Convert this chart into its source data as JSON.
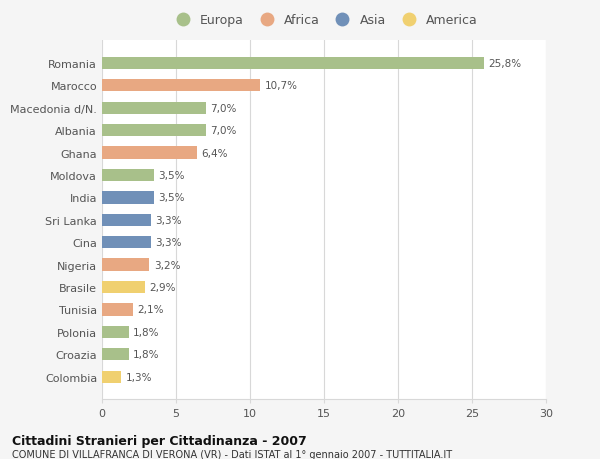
{
  "countries": [
    "Romania",
    "Marocco",
    "Macedonia d/N.",
    "Albania",
    "Ghana",
    "Moldova",
    "India",
    "Sri Lanka",
    "Cina",
    "Nigeria",
    "Brasile",
    "Tunisia",
    "Polonia",
    "Croazia",
    "Colombia"
  ],
  "values": [
    25.8,
    10.7,
    7.0,
    7.0,
    6.4,
    3.5,
    3.5,
    3.3,
    3.3,
    3.2,
    2.9,
    2.1,
    1.8,
    1.8,
    1.3
  ],
  "labels": [
    "25,8%",
    "10,7%",
    "7,0%",
    "7,0%",
    "6,4%",
    "3,5%",
    "3,5%",
    "3,3%",
    "3,3%",
    "3,2%",
    "2,9%",
    "2,1%",
    "1,8%",
    "1,8%",
    "1,3%"
  ],
  "continents": [
    "Europa",
    "Africa",
    "Europa",
    "Europa",
    "Africa",
    "Europa",
    "Asia",
    "Asia",
    "Asia",
    "Africa",
    "America",
    "Africa",
    "Europa",
    "Europa",
    "America"
  ],
  "colors": {
    "Europa": "#a8c08a",
    "Africa": "#e8a882",
    "Asia": "#7090b8",
    "America": "#f0d070"
  },
  "legend_order": [
    "Europa",
    "Africa",
    "Asia",
    "America"
  ],
  "xlim": [
    0,
    30
  ],
  "xticks": [
    0,
    5,
    10,
    15,
    20,
    25,
    30
  ],
  "title": "Cittadini Stranieri per Cittadinanza - 2007",
  "subtitle": "COMUNE DI VILLAFRANCA DI VERONA (VR) - Dati ISTAT al 1° gennaio 2007 - TUTTITALIA.IT",
  "bg_color": "#f5f5f5",
  "bar_bg_color": "#ffffff",
  "grid_color": "#d8d8d8"
}
